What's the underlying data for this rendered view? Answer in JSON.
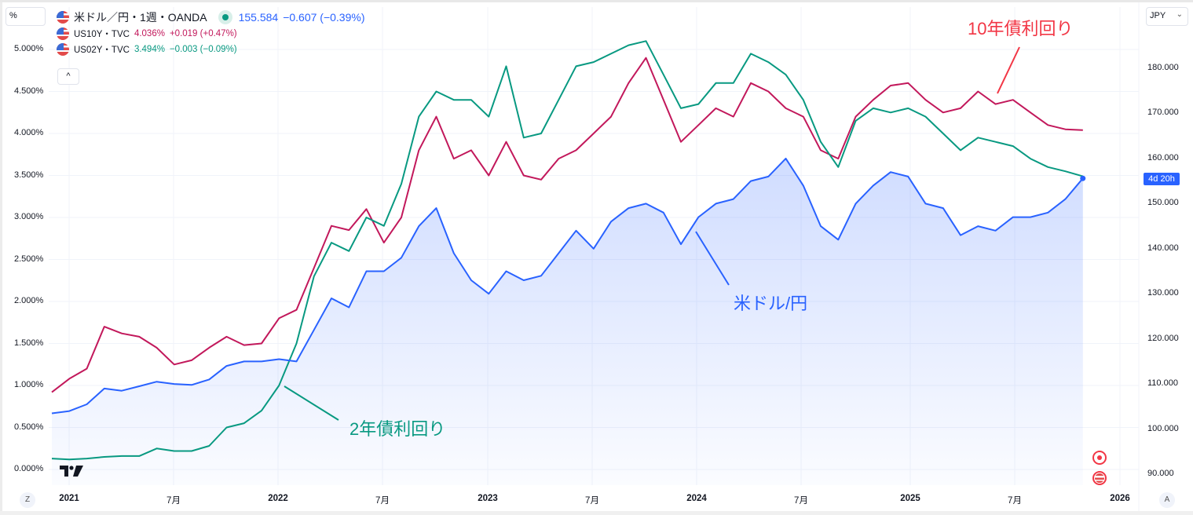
{
  "header": {
    "unit_selector": "%",
    "currency_selector": "JPY",
    "collapse_button": "^"
  },
  "legend": {
    "main": {
      "symbol": "米ドル／円・1週・OANDA",
      "price": "155.584",
      "change": "−0.607 (−0.39%)",
      "color": "#2962ff"
    },
    "series": [
      {
        "symbol": "US10Y・TVC",
        "value": "4.036%",
        "change": "+0.019 (+0.47%)",
        "color": "#c2185b"
      },
      {
        "symbol": "US02Y・TVC",
        "value": "3.494%",
        "change": "−0.003 (−0.09%)",
        "color": "#089981"
      }
    ]
  },
  "left_axis": {
    "labels": [
      "5.000%",
      "4.500%",
      "4.000%",
      "3.500%",
      "3.000%",
      "2.500%",
      "2.000%",
      "1.500%",
      "1.000%",
      "0.500%",
      "0.000%"
    ]
  },
  "right_axis": {
    "labels": [
      "180.000",
      "170.000",
      "160.000",
      "150.000",
      "140.000",
      "130.000",
      "120.000",
      "110.000",
      "100.000",
      "90.000"
    ],
    "time_badge": "4d 20h"
  },
  "x_axis": {
    "labels": [
      "2021",
      "7月",
      "2022",
      "7月",
      "2023",
      "7月",
      "2024",
      "7月",
      "2025",
      "7月",
      "2026"
    ]
  },
  "corner_buttons": {
    "left": "Z",
    "right": "A"
  },
  "annotations": {
    "us10y": {
      "text": "10年債利回り",
      "color": "#f23645"
    },
    "us02y": {
      "text": "2年債利回り",
      "color": "#089981"
    },
    "usdjpy": {
      "text": "米ドル/円",
      "color": "#2962ff"
    }
  },
  "chart_data": {
    "type": "line",
    "title": "米ドル／円・1週・OANDA with US10Y and US02Y",
    "xlabel": "",
    "x": [
      "2020-12",
      "2021-01",
      "2021-02",
      "2021-03",
      "2021-04",
      "2021-05",
      "2021-06",
      "2021-07",
      "2021-08",
      "2021-09",
      "2021-10",
      "2021-11",
      "2021-12",
      "2022-01",
      "2022-02",
      "2022-03",
      "2022-04",
      "2022-05",
      "2022-06",
      "2022-07",
      "2022-08",
      "2022-09",
      "2022-10",
      "2022-11",
      "2022-12",
      "2023-01",
      "2023-02",
      "2023-03",
      "2023-04",
      "2023-05",
      "2023-06",
      "2023-07",
      "2023-08",
      "2023-09",
      "2023-10",
      "2023-11",
      "2023-12",
      "2024-01",
      "2024-02",
      "2024-03",
      "2024-04",
      "2024-05",
      "2024-06",
      "2024-07",
      "2024-08",
      "2024-09",
      "2024-10",
      "2024-11",
      "2024-12",
      "2025-01",
      "2025-02",
      "2025-03",
      "2025-04",
      "2025-05",
      "2025-06",
      "2025-07",
      "2025-08",
      "2025-09",
      "2025-10",
      "2025-11"
    ],
    "series": [
      {
        "name": "US10Y",
        "axis": "left",
        "unit": "%",
        "color": "#c2185b",
        "values": [
          0.92,
          1.08,
          1.2,
          1.7,
          1.62,
          1.58,
          1.45,
          1.25,
          1.3,
          1.45,
          1.58,
          1.48,
          1.5,
          1.8,
          1.9,
          2.4,
          2.9,
          2.85,
          3.1,
          2.7,
          3.0,
          3.8,
          4.2,
          3.7,
          3.8,
          3.5,
          3.9,
          3.5,
          3.45,
          3.7,
          3.8,
          4.0,
          4.2,
          4.6,
          4.9,
          4.4,
          3.9,
          4.1,
          4.3,
          4.2,
          4.6,
          4.5,
          4.3,
          4.2,
          3.8,
          3.7,
          4.2,
          4.4,
          4.57,
          4.6,
          4.4,
          4.25,
          4.3,
          4.5,
          4.35,
          4.4,
          4.25,
          4.1,
          4.05,
          4.04
        ]
      },
      {
        "name": "US02Y",
        "axis": "left",
        "unit": "%",
        "color": "#089981",
        "values": [
          0.13,
          0.12,
          0.13,
          0.15,
          0.16,
          0.16,
          0.25,
          0.22,
          0.22,
          0.28,
          0.5,
          0.55,
          0.7,
          1.0,
          1.5,
          2.3,
          2.7,
          2.6,
          3.0,
          2.9,
          3.4,
          4.2,
          4.5,
          4.4,
          4.4,
          4.2,
          4.8,
          3.95,
          4.0,
          4.4,
          4.8,
          4.85,
          4.95,
          5.05,
          5.1,
          4.7,
          4.3,
          4.35,
          4.6,
          4.6,
          4.95,
          4.85,
          4.7,
          4.4,
          3.9,
          3.6,
          4.15,
          4.3,
          4.25,
          4.3,
          4.2,
          4.0,
          3.8,
          3.95,
          3.9,
          3.85,
          3.7,
          3.6,
          3.55,
          3.49
        ]
      },
      {
        "name": "USD/JPY",
        "axis": "right",
        "unit": "JPY",
        "color": "#2962ff",
        "values": [
          103.5,
          104.0,
          105.5,
          109.0,
          108.5,
          109.5,
          110.5,
          110.0,
          109.8,
          111.0,
          114.0,
          115.0,
          115.0,
          115.5,
          115.0,
          122.0,
          129.0,
          127.0,
          135.0,
          135.0,
          138.0,
          145.0,
          149.0,
          139.0,
          133.0,
          130.0,
          135.0,
          133.0,
          134.0,
          139.0,
          144.0,
          140.0,
          146.0,
          149.0,
          150.0,
          148.0,
          141.0,
          147.0,
          150.0,
          151.0,
          155.0,
          156.0,
          160.0,
          154.0,
          145.0,
          142.0,
          150.0,
          154.0,
          157.0,
          156.0,
          150.0,
          149.0,
          143.0,
          145.0,
          144.0,
          147.0,
          147.0,
          148.0,
          151.0,
          155.6
        ]
      }
    ],
    "left_ylim": [
      0,
      5.25
    ],
    "right_ylim": [
      88,
      185
    ],
    "left_ylabel": "%",
    "right_ylabel": "JPY",
    "grid": true,
    "legend_position": "top-left"
  }
}
